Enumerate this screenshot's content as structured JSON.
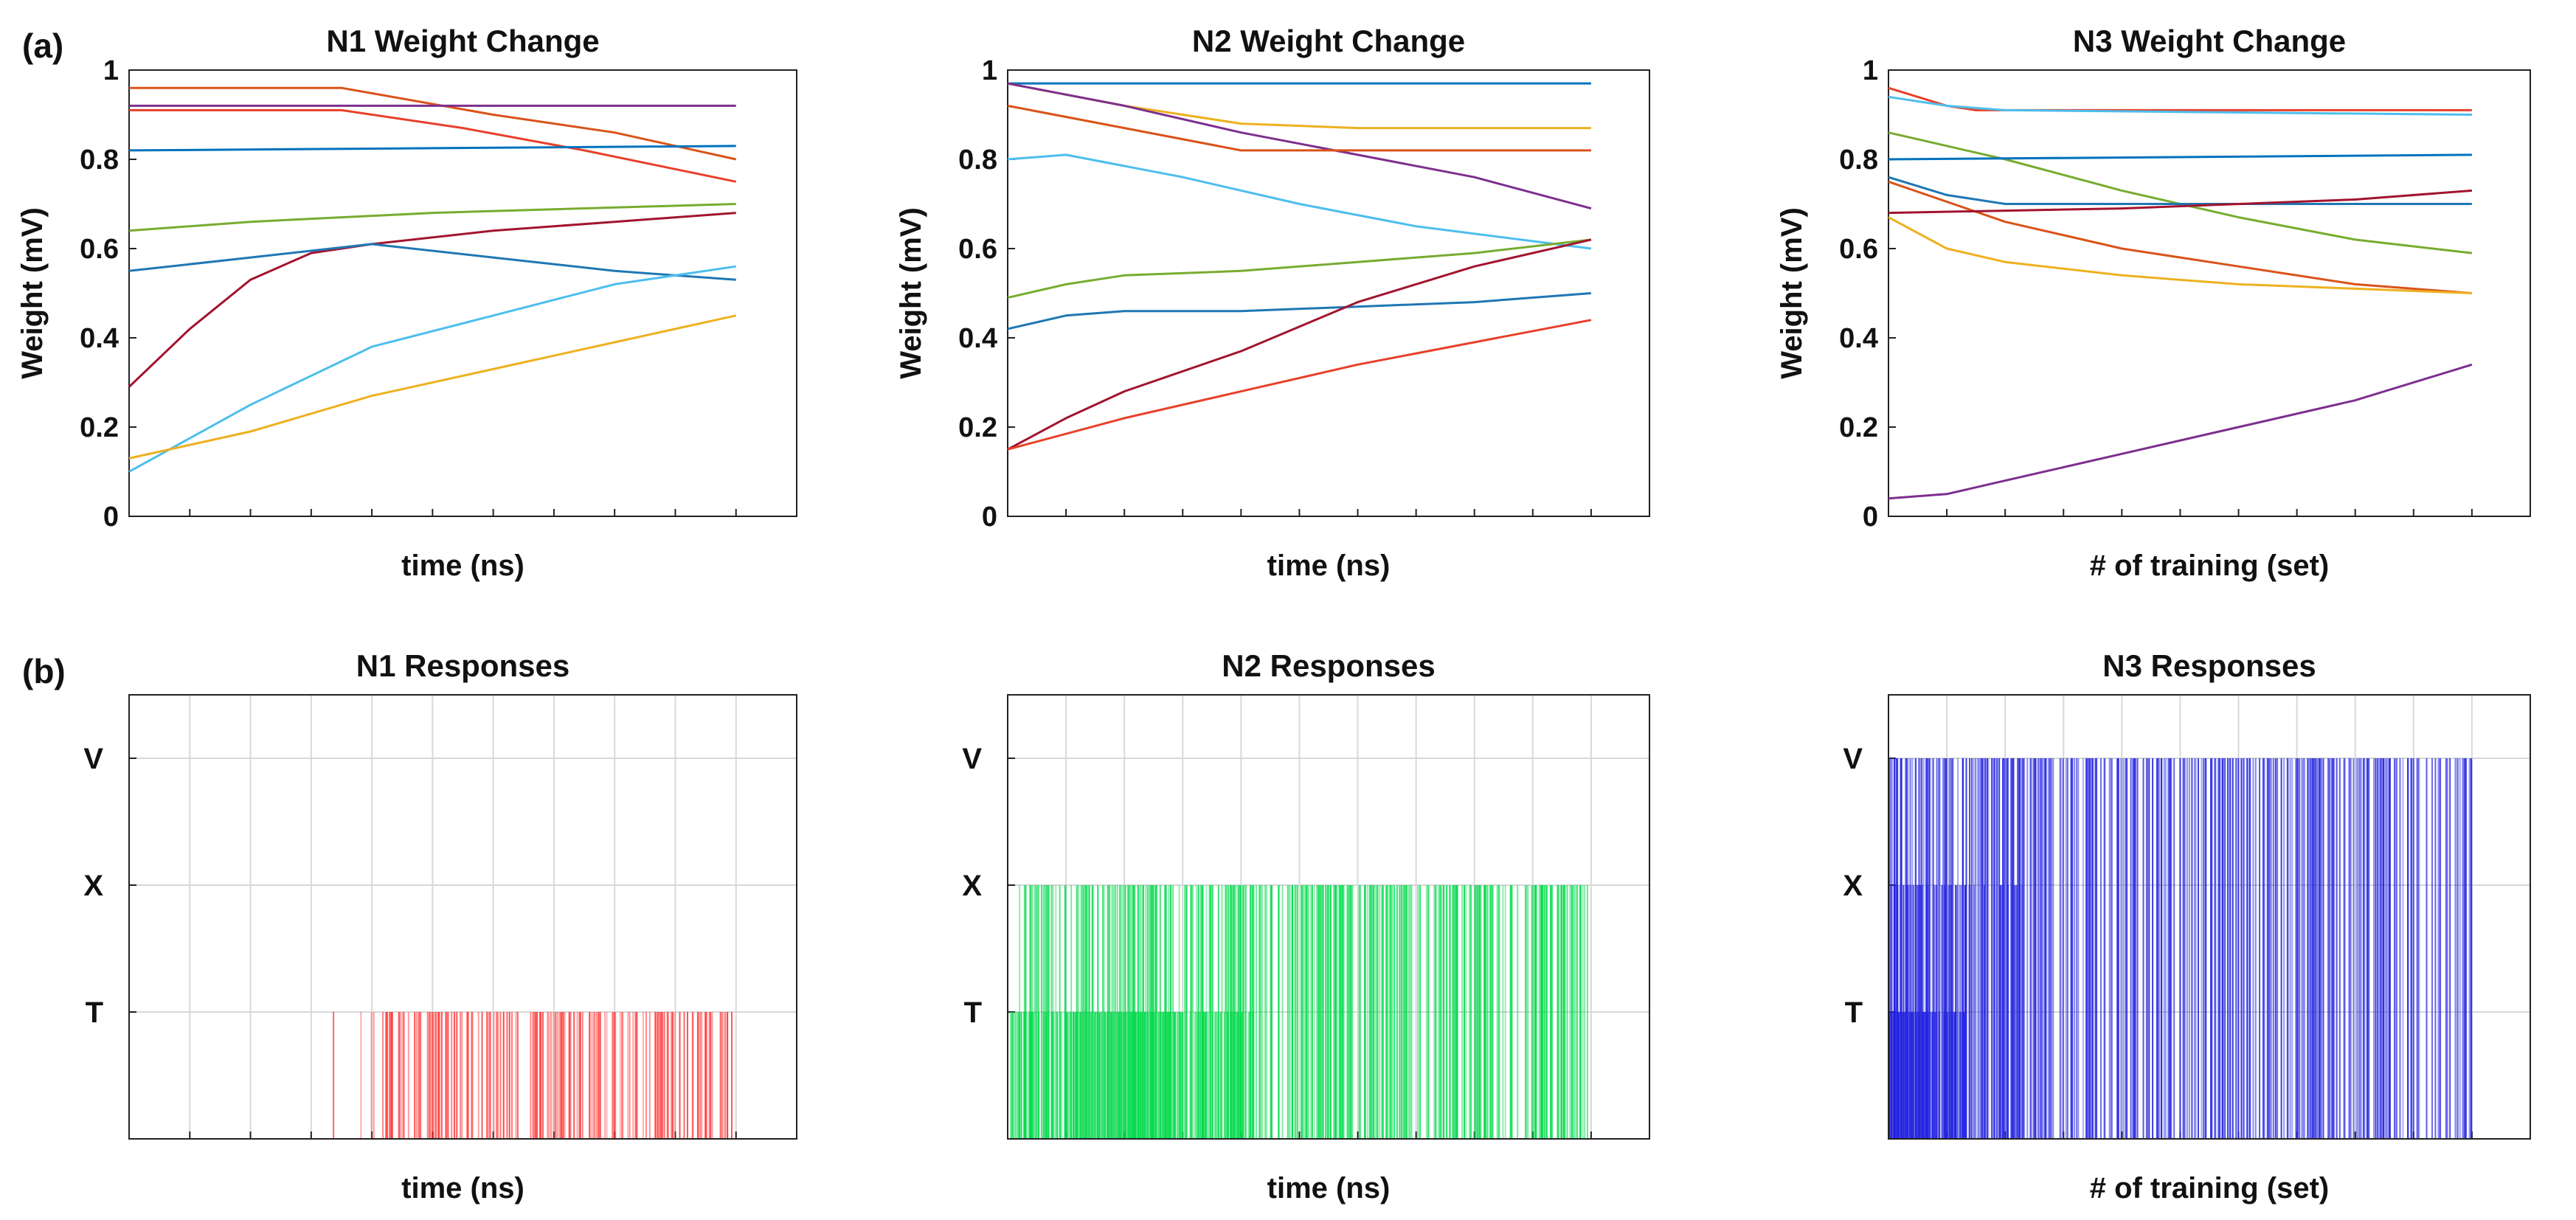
{
  "panel_labels": {
    "a": "(a)",
    "b": "(b)"
  },
  "chart_data": [
    {
      "type": "line",
      "title": "N1  Weight Change",
      "xlabel": "time (ns)",
      "ylabel": "Weight (mV)",
      "xlim": [
        0,
        11
      ],
      "ylim": [
        0,
        1
      ],
      "yticks": [
        "0",
        "0.2",
        "0.4",
        "0.6",
        "0.8",
        "1"
      ],
      "xticks_count": 11,
      "grid": false,
      "series": [
        {
          "name": "orange",
          "color": "#D95319",
          "points": [
            [
              0,
              0.96
            ],
            [
              3.5,
              0.96
            ],
            [
              6,
              0.9
            ],
            [
              8,
              0.86
            ],
            [
              10,
              0.8
            ]
          ]
        },
        {
          "name": "red",
          "color": "#E8402A",
          "points": [
            [
              0,
              0.91
            ],
            [
              3.5,
              0.91
            ],
            [
              5.5,
              0.87
            ],
            [
              7.5,
              0.82
            ],
            [
              10,
              0.75
            ]
          ]
        },
        {
          "name": "purple",
          "color": "#7E2F8E",
          "points": [
            [
              0,
              0.92
            ],
            [
              10,
              0.92
            ]
          ]
        },
        {
          "name": "blue",
          "color": "#0072BD",
          "points": [
            [
              0,
              0.82
            ],
            [
              10,
              0.83
            ]
          ]
        },
        {
          "name": "green",
          "color": "#77AC30",
          "points": [
            [
              0,
              0.64
            ],
            [
              2,
              0.66
            ],
            [
              5,
              0.68
            ],
            [
              10,
              0.7
            ]
          ]
        },
        {
          "name": "darkred",
          "color": "#A2142F",
          "points": [
            [
              0,
              0.29
            ],
            [
              1,
              0.42
            ],
            [
              2,
              0.53
            ],
            [
              3,
              0.59
            ],
            [
              4,
              0.61
            ],
            [
              6,
              0.64
            ],
            [
              8,
              0.66
            ],
            [
              10,
              0.68
            ]
          ]
        },
        {
          "name": "steelblue",
          "color": "#1F77B4",
          "points": [
            [
              0,
              0.55
            ],
            [
              2,
              0.58
            ],
            [
              4,
              0.61
            ],
            [
              6,
              0.58
            ],
            [
              8,
              0.55
            ],
            [
              10,
              0.53
            ]
          ]
        },
        {
          "name": "cyan",
          "color": "#4DBEEE",
          "points": [
            [
              0,
              0.1
            ],
            [
              2,
              0.25
            ],
            [
              4,
              0.38
            ],
            [
              6,
              0.45
            ],
            [
              8,
              0.52
            ],
            [
              10,
              0.56
            ]
          ]
        },
        {
          "name": "yellow",
          "color": "#EDB120",
          "points": [
            [
              0,
              0.13
            ],
            [
              2,
              0.19
            ],
            [
              4,
              0.27
            ],
            [
              6,
              0.33
            ],
            [
              8,
              0.39
            ],
            [
              10,
              0.45
            ]
          ]
        }
      ]
    },
    {
      "type": "line",
      "title": "N2  Weight Change",
      "xlabel": "time (ns)",
      "ylabel": "Weight (mV)",
      "xlim": [
        0,
        11
      ],
      "ylim": [
        0,
        1
      ],
      "yticks": [
        "0",
        "0.2",
        "0.4",
        "0.6",
        "0.8",
        "1"
      ],
      "xticks_count": 11,
      "grid": false,
      "series": [
        {
          "name": "blue",
          "color": "#0072BD",
          "points": [
            [
              0,
              0.97
            ],
            [
              10,
              0.97
            ]
          ]
        },
        {
          "name": "yellow",
          "color": "#EDB120",
          "points": [
            [
              0,
              0.97
            ],
            [
              2,
              0.92
            ],
            [
              4,
              0.88
            ],
            [
              6,
              0.87
            ],
            [
              10,
              0.87
            ]
          ]
        },
        {
          "name": "purple",
          "color": "#7E2F8E",
          "points": [
            [
              0,
              0.97
            ],
            [
              2,
              0.92
            ],
            [
              4,
              0.86
            ],
            [
              6,
              0.81
            ],
            [
              8,
              0.76
            ],
            [
              10,
              0.69
            ]
          ]
        },
        {
          "name": "orange",
          "color": "#D95319",
          "points": [
            [
              0,
              0.92
            ],
            [
              2,
              0.87
            ],
            [
              4,
              0.82
            ],
            [
              6,
              0.82
            ],
            [
              10,
              0.82
            ]
          ]
        },
        {
          "name": "cyan",
          "color": "#4DBEEE",
          "points": [
            [
              0,
              0.8
            ],
            [
              1,
              0.81
            ],
            [
              3,
              0.76
            ],
            [
              5,
              0.7
            ],
            [
              7,
              0.65
            ],
            [
              10,
              0.6
            ]
          ]
        },
        {
          "name": "green",
          "color": "#77AC30",
          "points": [
            [
              0,
              0.49
            ],
            [
              1,
              0.52
            ],
            [
              2,
              0.54
            ],
            [
              4,
              0.55
            ],
            [
              6,
              0.57
            ],
            [
              8,
              0.59
            ],
            [
              10,
              0.62
            ]
          ]
        },
        {
          "name": "steelblue",
          "color": "#1F77B4",
          "points": [
            [
              0,
              0.42
            ],
            [
              1,
              0.45
            ],
            [
              2,
              0.46
            ],
            [
              4,
              0.46
            ],
            [
              6,
              0.47
            ],
            [
              8,
              0.48
            ],
            [
              10,
              0.5
            ]
          ]
        },
        {
          "name": "darkred",
          "color": "#A2142F",
          "points": [
            [
              0,
              0.15
            ],
            [
              1,
              0.22
            ],
            [
              2,
              0.28
            ],
            [
              4,
              0.37
            ],
            [
              6,
              0.48
            ],
            [
              8,
              0.56
            ],
            [
              10,
              0.62
            ]
          ]
        },
        {
          "name": "red",
          "color": "#E8402A",
          "points": [
            [
              0,
              0.15
            ],
            [
              2,
              0.22
            ],
            [
              4,
              0.28
            ],
            [
              6,
              0.34
            ],
            [
              8,
              0.39
            ],
            [
              10,
              0.44
            ]
          ]
        }
      ]
    },
    {
      "type": "line",
      "title": "N3  Weight Change",
      "xlabel": "# of training (set)",
      "ylabel": "Weight (mV)",
      "xlim": [
        0,
        11
      ],
      "ylim": [
        0,
        1
      ],
      "yticks": [
        "0",
        "0.2",
        "0.4",
        "0.6",
        "0.8",
        "1"
      ],
      "xticks_count": 11,
      "grid": false,
      "series": [
        {
          "name": "red",
          "color": "#E8402A",
          "points": [
            [
              0,
              0.96
            ],
            [
              0.5,
              0.94
            ],
            [
              1,
              0.92
            ],
            [
              1.5,
              0.91
            ],
            [
              2.5,
              0.91
            ],
            [
              10,
              0.91
            ]
          ]
        },
        {
          "name": "cyan",
          "color": "#4DBEEE",
          "points": [
            [
              0,
              0.94
            ],
            [
              1,
              0.92
            ],
            [
              2,
              0.91
            ],
            [
              10,
              0.9
            ]
          ]
        },
        {
          "name": "green",
          "color": "#77AC30",
          "points": [
            [
              0,
              0.86
            ],
            [
              2,
              0.8
            ],
            [
              4,
              0.73
            ],
            [
              6,
              0.67
            ],
            [
              8,
              0.62
            ],
            [
              10,
              0.59
            ]
          ]
        },
        {
          "name": "blue",
          "color": "#0072BD",
          "points": [
            [
              0,
              0.8
            ],
            [
              10,
              0.81
            ]
          ]
        },
        {
          "name": "steelblue",
          "color": "#1F77B4",
          "points": [
            [
              0,
              0.76
            ],
            [
              1,
              0.72
            ],
            [
              2,
              0.7
            ],
            [
              4,
              0.7
            ],
            [
              10,
              0.7
            ]
          ]
        },
        {
          "name": "orange",
          "color": "#D95319",
          "points": [
            [
              0,
              0.75
            ],
            [
              2,
              0.66
            ],
            [
              4,
              0.6
            ],
            [
              6,
              0.56
            ],
            [
              8,
              0.52
            ],
            [
              10,
              0.5
            ]
          ]
        },
        {
          "name": "darkred",
          "color": "#A2142F",
          "points": [
            [
              0,
              0.68
            ],
            [
              4,
              0.69
            ],
            [
              8,
              0.71
            ],
            [
              10,
              0.73
            ]
          ]
        },
        {
          "name": "yellow",
          "color": "#EDB120",
          "points": [
            [
              0,
              0.67
            ],
            [
              1,
              0.6
            ],
            [
              2,
              0.57
            ],
            [
              4,
              0.54
            ],
            [
              6,
              0.52
            ],
            [
              8,
              0.51
            ],
            [
              10,
              0.5
            ]
          ]
        },
        {
          "name": "purple",
          "color": "#7E2F8E",
          "points": [
            [
              0,
              0.04
            ],
            [
              1,
              0.05
            ],
            [
              2,
              0.08
            ],
            [
              4,
              0.14
            ],
            [
              6,
              0.2
            ],
            [
              8,
              0.26
            ],
            [
              10,
              0.34
            ]
          ]
        }
      ]
    },
    {
      "type": "raster",
      "title": "N1 Responses",
      "xlabel": "time (ns)",
      "categories": [
        "T",
        "X",
        "V"
      ],
      "xlim": [
        0,
        11
      ],
      "grid": true,
      "color": "#FF3333",
      "events": {
        "T": {
          "ranges": [
            [
              3.0,
              4.1,
              0.12
            ],
            [
              4.1,
              10.0,
              0.5
            ]
          ]
        },
        "X": {
          "ranges": []
        },
        "V": {
          "ranges": []
        }
      }
    },
    {
      "type": "raster",
      "title": "N2 Responses",
      "xlabel": "time (ns)",
      "categories": [
        "T",
        "X",
        "V"
      ],
      "xlim": [
        0,
        11
      ],
      "grid": true,
      "color": "#00D94A",
      "events": {
        "T": {
          "ranges": [
            [
              0,
              1.0,
              0.6
            ],
            [
              1.0,
              3.0,
              0.95
            ],
            [
              3.0,
              4.2,
              0.6
            ]
          ]
        },
        "X": {
          "ranges": [
            [
              0.2,
              10.0,
              0.55
            ]
          ]
        },
        "V": {
          "ranges": []
        }
      }
    },
    {
      "type": "raster",
      "title": "N3 Responses",
      "xlabel": "# of training (set)",
      "categories": [
        "T",
        "X",
        "V"
      ],
      "xlim": [
        0,
        11
      ],
      "grid": true,
      "color": "#1F1FE0",
      "events": {
        "T": {
          "ranges": [
            [
              0,
              0.4,
              1.0
            ],
            [
              0.4,
              1.3,
              0.7
            ]
          ]
        },
        "X": {
          "ranges": [
            [
              0,
              1.5,
              0.6
            ],
            [
              1.5,
              2.3,
              0.25
            ]
          ]
        },
        "V": {
          "ranges": [
            [
              0,
              10.0,
              0.55
            ]
          ]
        }
      }
    }
  ]
}
